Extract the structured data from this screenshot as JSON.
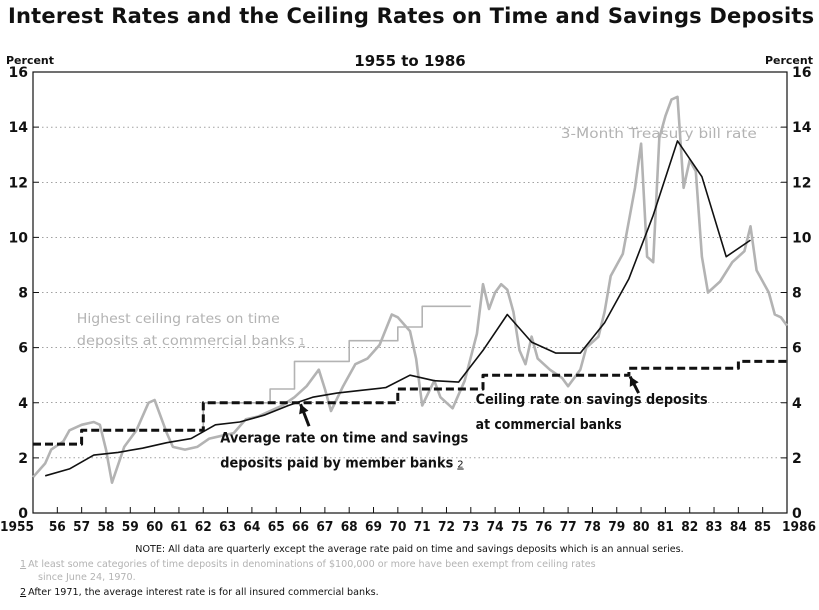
{
  "header": {
    "title": "Interest Rates and the Ceiling Rates on Time and Savings Deposits"
  },
  "notes": {
    "main": "NOTE: All data are quarterly except the average rate paid on time and savings deposits which is an annual series.",
    "footnote1_mark": "1",
    "footnote1_line1": "At least some categories of time deposits in denominations of $100,000 or more have been exempt from ceiling rates",
    "footnote1_line2": "since June 24, 1970.",
    "footnote2_mark": "2",
    "footnote2": "After 1971, the average interest rate is for all insured commercial banks."
  },
  "colors": {
    "ink": "#111111",
    "treasury_gray": "#b3b3b3"
  },
  "chart_data": {
    "type": "line",
    "subtitle": "1955 to 1986",
    "ylabel_left": "Percent",
    "ylabel_right": "Percent",
    "ylim": [
      0,
      16
    ],
    "yticks": [
      0,
      2,
      4,
      6,
      8,
      10,
      12,
      14,
      16
    ],
    "xlim": [
      1955,
      1986
    ],
    "xtick_labels": [
      "1955",
      "56",
      "57",
      "58",
      "59",
      "60",
      "61",
      "62",
      "63",
      "64",
      "65",
      "66",
      "67",
      "68",
      "69",
      "70",
      "71",
      "72",
      "73",
      "74",
      "75",
      "76",
      "77",
      "78",
      "79",
      "80",
      "81",
      "82",
      "83",
      "84",
      "85",
      "1986"
    ],
    "grid": "horizontal-dotted",
    "series": [
      {
        "name": "3-Month Treasury bill rate",
        "style": "gray-solid",
        "points": [
          [
            1955.0,
            1.3
          ],
          [
            1955.5,
            1.8
          ],
          [
            1955.75,
            2.3
          ],
          [
            1956.25,
            2.6
          ],
          [
            1956.5,
            3.0
          ],
          [
            1957.0,
            3.2
          ],
          [
            1957.5,
            3.3
          ],
          [
            1957.75,
            3.2
          ],
          [
            1958.0,
            2.3
          ],
          [
            1958.25,
            1.1
          ],
          [
            1958.75,
            2.4
          ],
          [
            1959.25,
            3.0
          ],
          [
            1959.75,
            4.0
          ],
          [
            1960.0,
            4.1
          ],
          [
            1960.5,
            2.9
          ],
          [
            1960.75,
            2.4
          ],
          [
            1961.25,
            2.3
          ],
          [
            1961.75,
            2.4
          ],
          [
            1962.25,
            2.7
          ],
          [
            1962.75,
            2.8
          ],
          [
            1963.25,
            2.9
          ],
          [
            1963.75,
            3.4
          ],
          [
            1964.25,
            3.5
          ],
          [
            1964.75,
            3.7
          ],
          [
            1965.25,
            3.9
          ],
          [
            1965.75,
            4.2
          ],
          [
            1966.25,
            4.6
          ],
          [
            1966.75,
            5.2
          ],
          [
            1967.0,
            4.5
          ],
          [
            1967.25,
            3.7
          ],
          [
            1967.75,
            4.6
          ],
          [
            1968.25,
            5.4
          ],
          [
            1968.75,
            5.6
          ],
          [
            1969.25,
            6.1
          ],
          [
            1969.75,
            7.2
          ],
          [
            1970.0,
            7.1
          ],
          [
            1970.5,
            6.6
          ],
          [
            1970.75,
            5.6
          ],
          [
            1971.0,
            3.9
          ],
          [
            1971.5,
            4.8
          ],
          [
            1971.75,
            4.2
          ],
          [
            1972.25,
            3.8
          ],
          [
            1972.75,
            4.8
          ],
          [
            1973.25,
            6.5
          ],
          [
            1973.5,
            8.3
          ],
          [
            1973.75,
            7.4
          ],
          [
            1974.0,
            8.0
          ],
          [
            1974.25,
            8.3
          ],
          [
            1974.5,
            8.1
          ],
          [
            1974.75,
            7.3
          ],
          [
            1975.0,
            5.9
          ],
          [
            1975.25,
            5.4
          ],
          [
            1975.5,
            6.4
          ],
          [
            1975.75,
            5.6
          ],
          [
            1976.25,
            5.2
          ],
          [
            1976.75,
            4.9
          ],
          [
            1977.0,
            4.6
          ],
          [
            1977.5,
            5.2
          ],
          [
            1977.75,
            6.0
          ],
          [
            1978.25,
            6.4
          ],
          [
            1978.5,
            7.3
          ],
          [
            1978.75,
            8.6
          ],
          [
            1979.25,
            9.4
          ],
          [
            1979.75,
            11.8
          ],
          [
            1980.0,
            13.4
          ],
          [
            1980.25,
            9.3
          ],
          [
            1980.5,
            9.1
          ],
          [
            1980.75,
            13.6
          ],
          [
            1981.0,
            14.4
          ],
          [
            1981.25,
            15.0
          ],
          [
            1981.5,
            15.1
          ],
          [
            1981.75,
            11.8
          ],
          [
            1982.0,
            12.8
          ],
          [
            1982.25,
            12.4
          ],
          [
            1982.5,
            9.3
          ],
          [
            1982.75,
            8.0
          ],
          [
            1983.25,
            8.4
          ],
          [
            1983.75,
            9.1
          ],
          [
            1984.25,
            9.5
          ],
          [
            1984.5,
            10.4
          ],
          [
            1984.75,
            8.8
          ],
          [
            1985.25,
            8.0
          ],
          [
            1985.5,
            7.2
          ],
          [
            1985.75,
            7.1
          ],
          [
            1986.0,
            6.8
          ]
        ]
      },
      {
        "name": "Highest ceiling rates on time deposits at commercial banks",
        "footnote": "1",
        "style": "gray-stepped",
        "points": [
          [
            1962.0,
            3.0
          ],
          [
            1962.0,
            4.0
          ],
          [
            1964.75,
            4.0
          ],
          [
            1964.75,
            4.5
          ],
          [
            1965.75,
            4.5
          ],
          [
            1965.75,
            5.5
          ],
          [
            1968.0,
            5.5
          ],
          [
            1968.0,
            6.25
          ],
          [
            1970.0,
            6.25
          ],
          [
            1970.0,
            6.75
          ],
          [
            1971.0,
            6.75
          ],
          [
            1971.0,
            7.5
          ],
          [
            1973.0,
            7.5
          ]
        ]
      },
      {
        "name": "Average rate on time and savings deposits paid by member banks",
        "footnote": "2",
        "style": "black-solid",
        "points": [
          [
            1955.5,
            1.35
          ],
          [
            1956.5,
            1.6
          ],
          [
            1957.5,
            2.1
          ],
          [
            1958.5,
            2.2
          ],
          [
            1959.5,
            2.35
          ],
          [
            1960.5,
            2.55
          ],
          [
            1961.5,
            2.7
          ],
          [
            1962.5,
            3.2
          ],
          [
            1963.5,
            3.3
          ],
          [
            1964.5,
            3.55
          ],
          [
            1965.5,
            3.9
          ],
          [
            1966.5,
            4.2
          ],
          [
            1967.5,
            4.35
          ],
          [
            1968.5,
            4.45
          ],
          [
            1969.5,
            4.55
          ],
          [
            1970.5,
            5.0
          ],
          [
            1971.5,
            4.8
          ],
          [
            1972.5,
            4.75
          ],
          [
            1973.5,
            5.9
          ],
          [
            1974.5,
            7.2
          ],
          [
            1975.5,
            6.2
          ],
          [
            1976.5,
            5.8
          ],
          [
            1977.5,
            5.8
          ],
          [
            1978.5,
            6.9
          ],
          [
            1979.5,
            8.5
          ],
          [
            1980.5,
            10.8
          ],
          [
            1981.5,
            13.5
          ],
          [
            1982.5,
            12.2
          ],
          [
            1983.5,
            9.3
          ],
          [
            1984.5,
            9.9
          ]
        ]
      },
      {
        "name": "Ceiling rate on savings deposits at commercial banks",
        "style": "black-dashed-stepped",
        "points": [
          [
            1955.0,
            2.5
          ],
          [
            1957.0,
            2.5
          ],
          [
            1957.0,
            3.0
          ],
          [
            1962.0,
            3.0
          ],
          [
            1962.0,
            4.0
          ],
          [
            1970.0,
            4.0
          ],
          [
            1970.0,
            4.5
          ],
          [
            1973.5,
            4.5
          ],
          [
            1973.5,
            5.0
          ],
          [
            1979.5,
            5.0
          ],
          [
            1979.5,
            5.25
          ],
          [
            1984.0,
            5.25
          ],
          [
            1984.0,
            5.5
          ],
          [
            1986.0,
            5.5
          ]
        ]
      }
    ],
    "annotations": {
      "treasury": "3-Month Treasury bill rate",
      "ceiling_time_line1": "Highest ceiling rates on time",
      "ceiling_time_line2": "deposits at commercial banks",
      "ceiling_time_mark": "1",
      "average_line1": "Average rate on time and savings",
      "average_line2": "deposits paid by member banks",
      "average_mark": "2",
      "savings_line1": "Ceiling rate on savings deposits",
      "savings_line2": "at commercial banks"
    }
  }
}
